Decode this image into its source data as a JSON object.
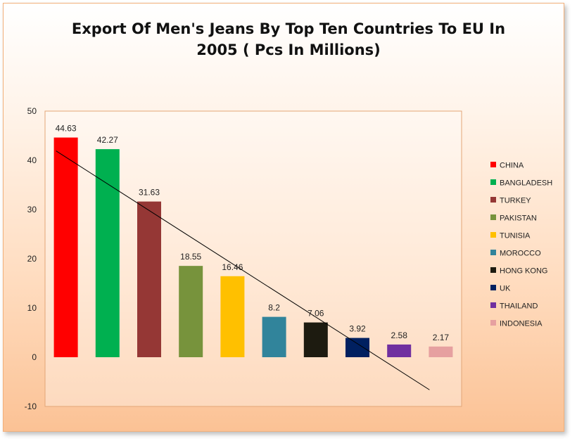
{
  "chart_data": {
    "type": "bar",
    "title": "Export Of Men's Jeans By Top Ten Countries To EU In 2005 ( Pcs In Millions)",
    "xlabel": "",
    "ylabel": "",
    "ylim": [
      -10,
      50
    ],
    "yticks": [
      -10,
      0,
      10,
      20,
      30,
      40,
      50
    ],
    "categories": [
      "CHINA",
      "BANGLADESH",
      "TURKEY",
      "PAKISTAN",
      "TUNISIA",
      "MOROCCO",
      "HONG KONG",
      "UK",
      "THAILAND",
      "INDONESIA"
    ],
    "values": [
      44.63,
      42.27,
      31.63,
      18.55,
      16.46,
      8.2,
      7.06,
      3.92,
      2.58,
      2.17
    ],
    "data_labels": [
      "44.63",
      "42.27",
      "31.63",
      "18.55",
      "16.46",
      "8.2",
      "7.06",
      "3.92",
      "2.58",
      "2.17"
    ],
    "colors": [
      "#ff0000",
      "#00b050",
      "#953735",
      "#77933c",
      "#ffc000",
      "#31849b",
      "#1d1b10",
      "#002060",
      "#7030a0",
      "#e6a0a0"
    ],
    "trendline": {
      "type": "linear",
      "color": "#000000"
    },
    "legend_position": "right",
    "grid": false
  }
}
